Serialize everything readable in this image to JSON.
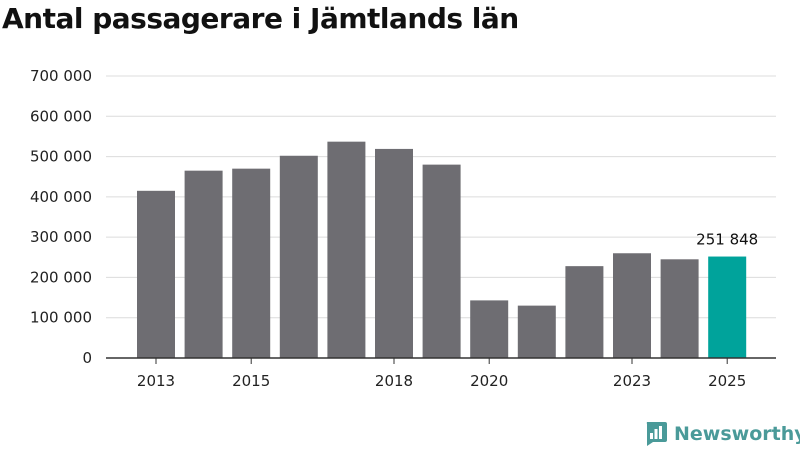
{
  "chart_data": {
    "type": "bar",
    "title": "Antal passagerare i Jämtlands län",
    "xlabel": "",
    "ylabel": "",
    "ylim": [
      0,
      700000
    ],
    "y_ticks": [
      0,
      100000,
      200000,
      300000,
      400000,
      500000,
      600000,
      700000
    ],
    "y_tick_labels": [
      "0",
      "100 000",
      "200 000",
      "300 000",
      "400 000",
      "500 000",
      "600 000",
      "700 000"
    ],
    "categories": [
      "2013",
      "2014",
      "2015",
      "2016",
      "2017",
      "2018",
      "2019",
      "2020",
      "2021",
      "2022",
      "2023",
      "2024",
      "2025"
    ],
    "x_tick_labels": [
      "2013",
      "2015",
      "2018",
      "2020",
      "2023",
      "2025"
    ],
    "values": [
      415000,
      465000,
      470000,
      502000,
      537000,
      519000,
      480000,
      143000,
      130000,
      228000,
      260000,
      245000,
      251848
    ],
    "highlight_index": 12,
    "highlight_label": "251 848",
    "grid": true,
    "colors": {
      "bar": "#6e6d72",
      "highlight": "#00a39b",
      "grid": "#dcdcdc",
      "axis": "#333333"
    }
  },
  "brand": {
    "name": "Newsworthy",
    "icon": "newsworthy-logo-icon",
    "color": "#4a9a99"
  }
}
